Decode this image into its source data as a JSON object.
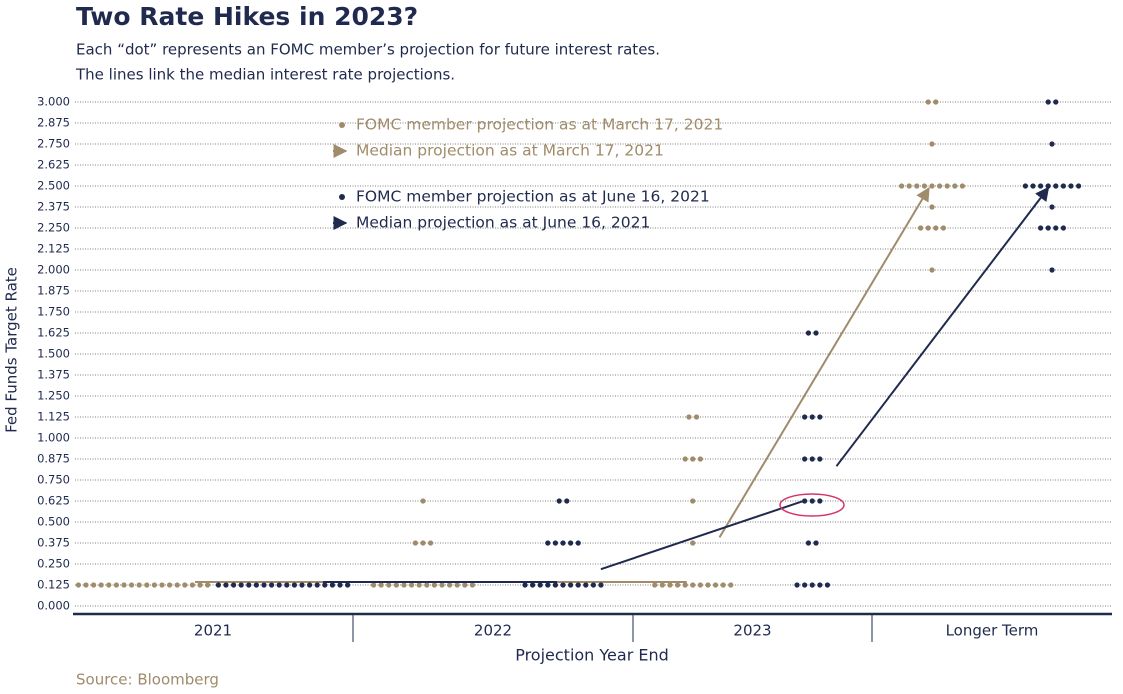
{
  "chart_data": {
    "type": "dot",
    "title": "Two Rate Hikes in 2023?",
    "subtitle": [
      "Each “dot” represents an FOMC member’s projection for future interest rates.",
      "The lines link the median interest rate projections."
    ],
    "y_label": "Fed Funds Target Rate",
    "x_label": "Projection Year End",
    "source": "Source: Bloomberg",
    "categories": [
      "2021",
      "2022",
      "2023",
      "Longer Term"
    ],
    "ylim": [
      0,
      3
    ],
    "yticks": [
      {
        "value": 0,
        "label": "0.000"
      },
      {
        "value": 0.125,
        "label": "0.125"
      },
      {
        "value": 0.25,
        "label": "0.250"
      },
      {
        "value": 0.375,
        "label": "0.375"
      },
      {
        "value": 0.5,
        "label": "0.500"
      },
      {
        "value": 0.625,
        "label": "0.625"
      },
      {
        "value": 0.75,
        "label": "0.750"
      },
      {
        "value": 0.875,
        "label": "0.875"
      },
      {
        "value": 1,
        "label": "1.000"
      },
      {
        "value": 1.125,
        "label": "1.125"
      },
      {
        "value": 1.25,
        "label": "1.250"
      },
      {
        "value": 1.375,
        "label": "1.375"
      },
      {
        "value": 1.5,
        "label": "1.500"
      },
      {
        "value": 1.625,
        "label": "1.625"
      },
      {
        "value": 1.75,
        "label": "1.750"
      },
      {
        "value": 1.875,
        "label": "1.875"
      },
      {
        "value": 2,
        "label": "2.000"
      },
      {
        "value": 2.125,
        "label": "2.125"
      },
      {
        "value": 2.25,
        "label": "2.250"
      },
      {
        "value": 2.375,
        "label": "2.375"
      },
      {
        "value": 2.5,
        "label": "2.500"
      },
      {
        "value": 2.625,
        "label": "2.625"
      },
      {
        "value": 2.75,
        "label": "2.750"
      },
      {
        "value": 2.875,
        "label": "2.875"
      },
      {
        "value": 3,
        "label": "3.000"
      }
    ],
    "grid": true,
    "series": [
      {
        "name": "FOMC member projection as at March 17, 2021",
        "median_name": "Median projection as at March 17, 2021",
        "color": "#a08b6b",
        "levels": [
          [
            {
              "rate": 0.125,
              "count": 18
            }
          ],
          [
            {
              "rate": 0.125,
              "count": 14
            },
            {
              "rate": 0.375,
              "count": 3
            },
            {
              "rate": 0.625,
              "count": 1
            }
          ],
          [
            {
              "rate": 0.125,
              "count": 11
            },
            {
              "rate": 0.375,
              "count": 1
            },
            {
              "rate": 0.625,
              "count": 1
            },
            {
              "rate": 0.875,
              "count": 3
            },
            {
              "rate": 1.125,
              "count": 2
            }
          ],
          [
            {
              "rate": 2,
              "count": 1
            },
            {
              "rate": 2.25,
              "count": 4
            },
            {
              "rate": 2.375,
              "count": 1
            },
            {
              "rate": 2.5,
              "count": 9
            },
            {
              "rate": 2.75,
              "count": 1
            },
            {
              "rate": 3,
              "count": 2
            }
          ]
        ],
        "medians": [
          0.125,
          0.125,
          0.125,
          2.5
        ]
      },
      {
        "name": "FOMC member projection as at June 16, 2021",
        "median_name": "Median projection as at June 16, 2021",
        "color": "#1f2a4e",
        "levels": [
          [
            {
              "rate": 0.125,
              "count": 18
            }
          ],
          [
            {
              "rate": 0.125,
              "count": 11
            },
            {
              "rate": 0.375,
              "count": 5
            },
            {
              "rate": 0.625,
              "count": 2
            }
          ],
          [
            {
              "rate": 0.125,
              "count": 5
            },
            {
              "rate": 0.375,
              "count": 2
            },
            {
              "rate": 0.625,
              "count": 3
            },
            {
              "rate": 0.875,
              "count": 3
            },
            {
              "rate": 1.125,
              "count": 3
            },
            {
              "rate": 1.625,
              "count": 2
            }
          ],
          [
            {
              "rate": 2,
              "count": 1
            },
            {
              "rate": 2.25,
              "count": 4
            },
            {
              "rate": 2.375,
              "count": 1
            },
            {
              "rate": 2.5,
              "count": 8
            },
            {
              "rate": 2.75,
              "count": 1
            },
            {
              "rate": 3,
              "count": 2
            }
          ]
        ],
        "medians": [
          0.125,
          0.125,
          0.625,
          2.5
        ]
      }
    ]
  }
}
